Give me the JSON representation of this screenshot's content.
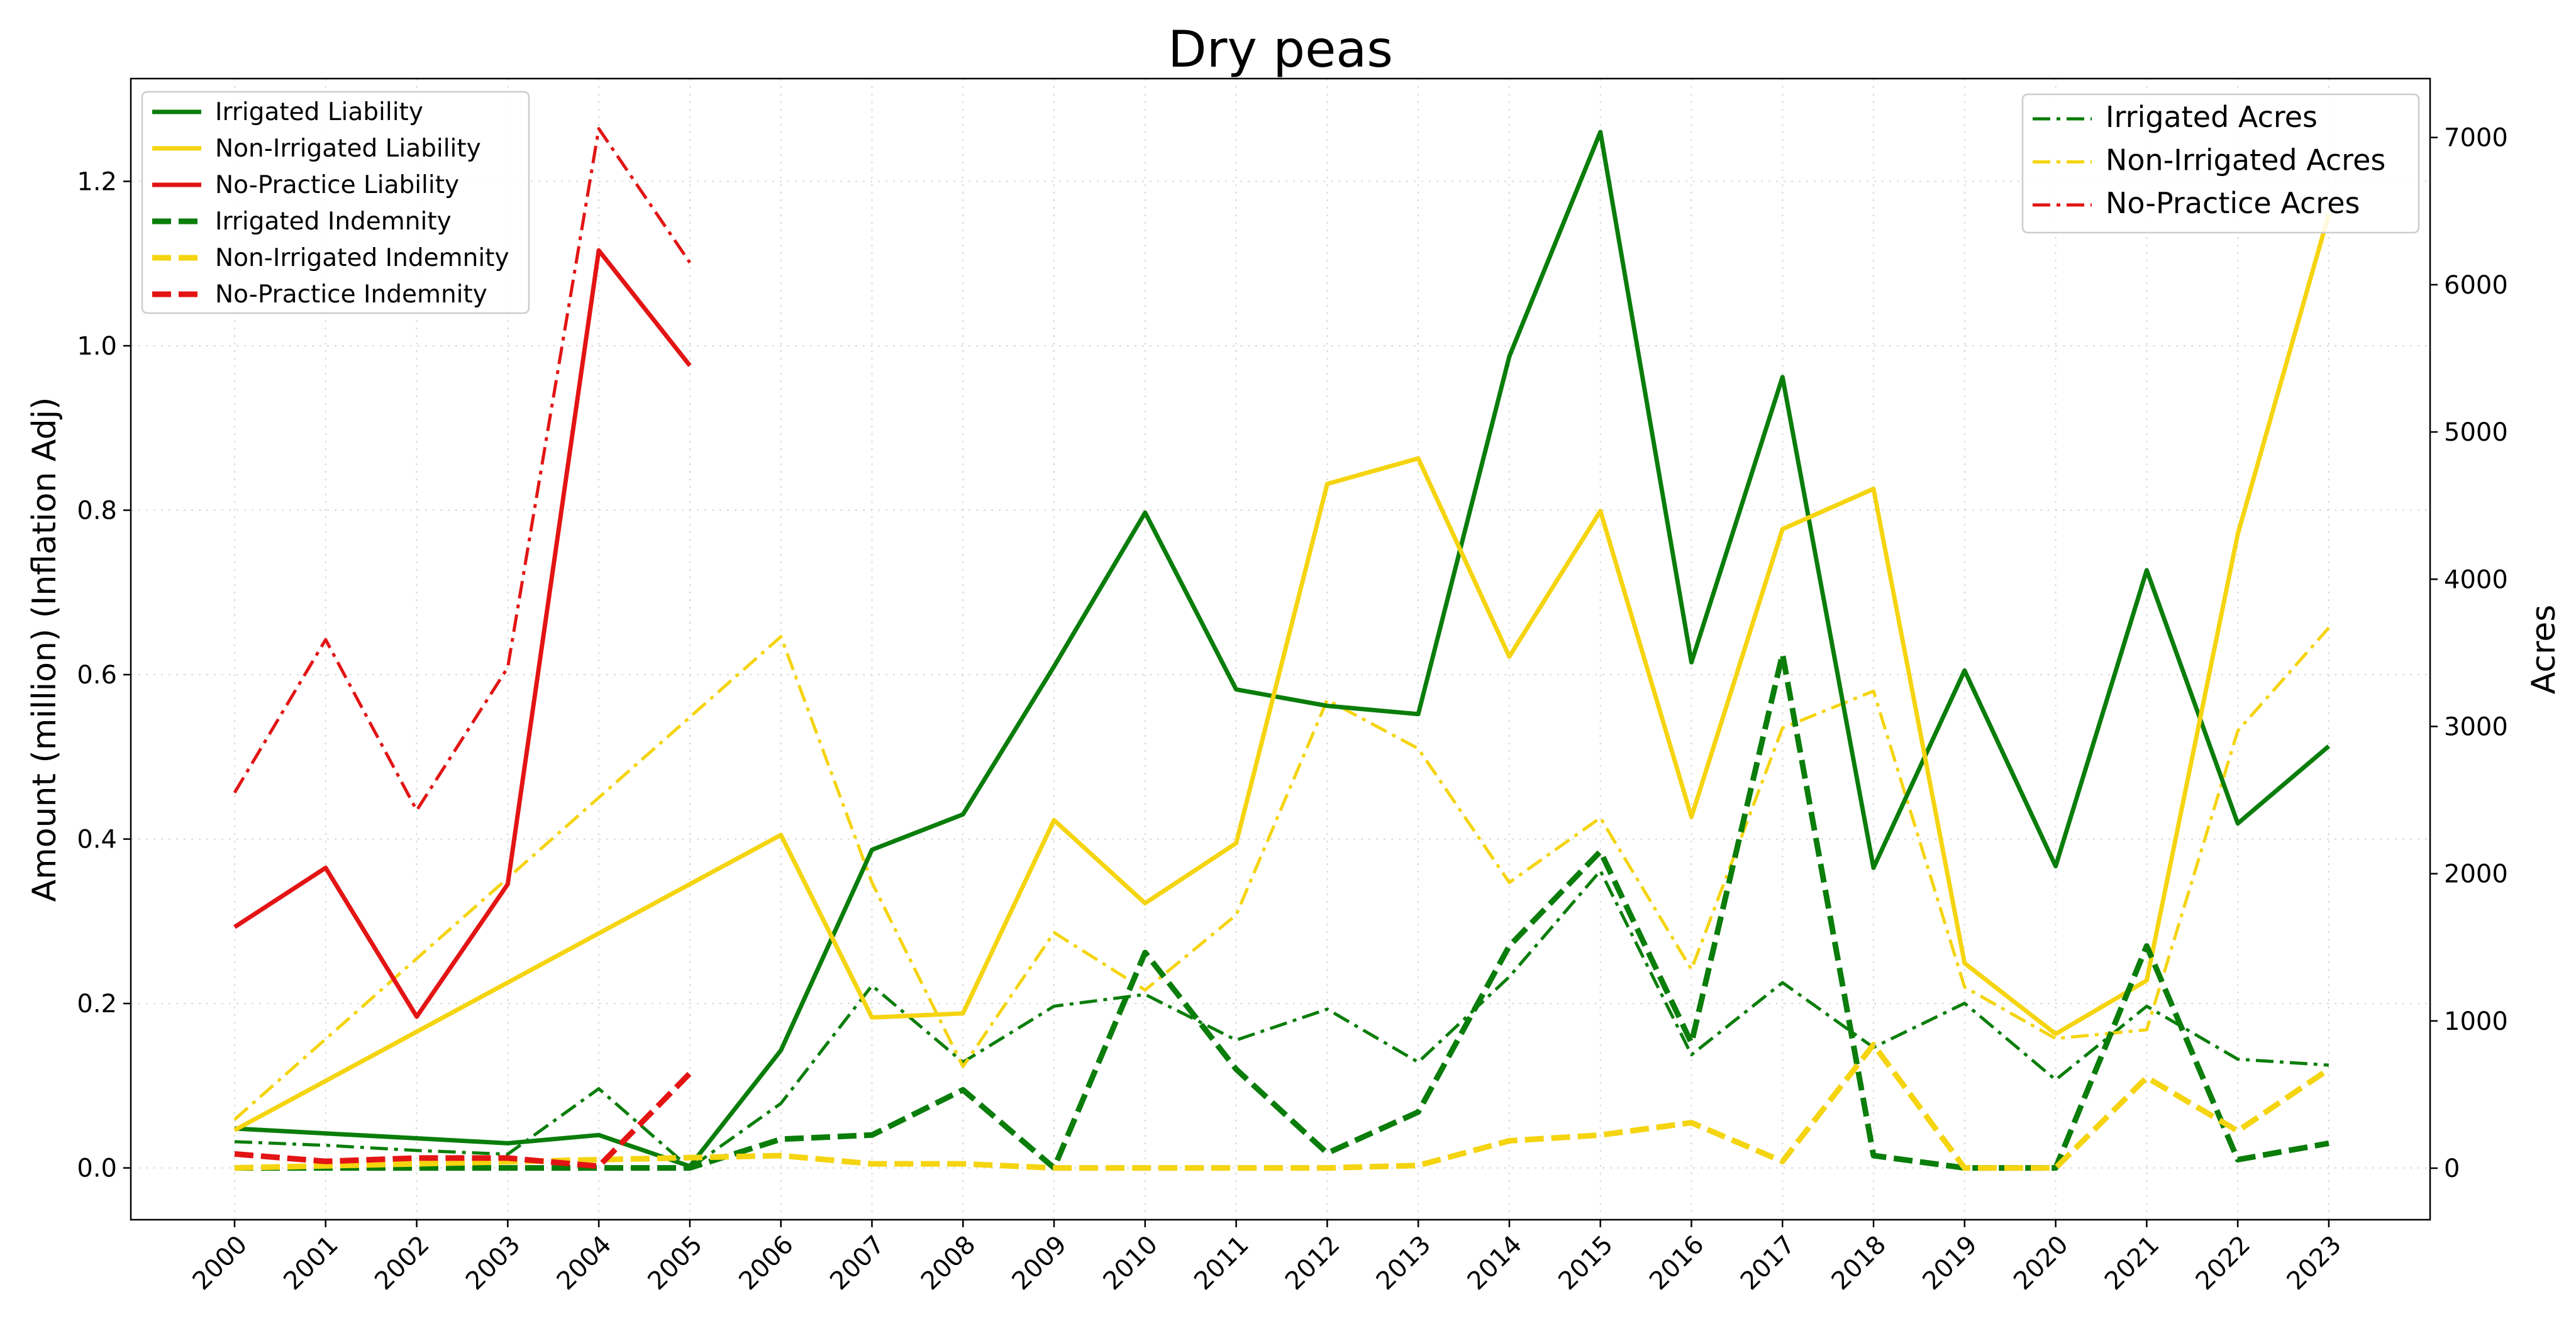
{
  "chart_data": {
    "type": "line",
    "title": "Dry peas",
    "ylabel_left": "Amount (million) (Inflation Adj)",
    "ylabel_right": "Acres",
    "xlabel": "",
    "x": [
      "2000",
      "2001",
      "2002",
      "2003",
      "2004",
      "2005",
      "2006",
      "2007",
      "2008",
      "2009",
      "2010",
      "2011",
      "2012",
      "2013",
      "2014",
      "2015",
      "2016",
      "2017",
      "2018",
      "2019",
      "2020",
      "2021",
      "2022",
      "2023"
    ],
    "ylim_left": [
      -0.063,
      1.325
    ],
    "ylim_right": [
      -350,
      7400
    ],
    "yticks_left": [
      "0.0",
      "0.2",
      "0.4",
      "0.6",
      "0.8",
      "1.0",
      "1.2"
    ],
    "yticks_right": [
      "0",
      "1000",
      "2000",
      "3000",
      "4000",
      "5000",
      "6000",
      "7000"
    ],
    "grid": true,
    "legend_left_placement": "top-left",
    "legend_right_placement": "top-right",
    "colors": {
      "irrigated": "#0a7d0a",
      "non_irrigated": "#f5d410",
      "no_practice": "#e31414"
    },
    "series_left": [
      {
        "name": "Irrigated Liability",
        "color": "#0a7d0a",
        "style": "solid",
        "values": [
          0.048,
          0.042,
          0.036,
          0.03,
          0.04,
          0.002,
          0.143,
          0.387,
          0.43,
          0.61,
          0.797,
          0.582,
          0.562,
          0.552,
          0.987,
          1.26,
          0.615,
          0.962,
          0.365,
          0.605,
          0.367,
          0.727,
          0.419,
          0.513
        ]
      },
      {
        "name": "Non-Irrigated Liability",
        "color": "#f5d410",
        "style": "solid",
        "values": [
          0.046,
          null,
          null,
          null,
          null,
          null,
          0.405,
          0.183,
          0.188,
          0.423,
          0.322,
          0.395,
          0.832,
          0.863,
          0.622,
          0.799,
          0.427,
          0.777,
          0.826,
          0.249,
          0.163,
          0.228,
          0.771,
          1.16
        ]
      },
      {
        "name": "No-Practice Liability",
        "color": "#e31414",
        "style": "solid",
        "values": [
          0.293,
          0.365,
          0.184,
          0.345,
          1.116,
          0.976,
          null,
          null,
          null,
          null,
          null,
          null,
          null,
          null,
          null,
          null,
          null,
          null,
          null,
          null,
          null,
          null,
          null,
          null
        ]
      },
      {
        "name": "Irrigated Indemnity",
        "color": "#0a7d0a",
        "style": "dashed",
        "values": [
          0.0,
          0.0,
          0.0,
          0.0,
          0.0,
          0.0,
          0.035,
          0.04,
          0.095,
          0.0,
          0.262,
          0.12,
          0.018,
          0.068,
          0.27,
          0.385,
          0.152,
          0.625,
          0.015,
          0.0,
          0.0,
          0.27,
          0.01,
          0.03
        ]
      },
      {
        "name": "Non-Irrigated Indemnity",
        "color": "#f5d410",
        "style": "dashed",
        "values": [
          0.0,
          null,
          null,
          null,
          null,
          null,
          0.015,
          0.005,
          0.005,
          0.0,
          0.0,
          0.0,
          0.0,
          0.003,
          0.033,
          0.04,
          0.055,
          0.008,
          0.15,
          0.0,
          0.0,
          0.11,
          0.045,
          0.12
        ]
      },
      {
        "name": "No-Practice Indemnity",
        "color": "#e31414",
        "style": "dashed",
        "values": [
          0.017,
          0.008,
          0.012,
          0.012,
          0.002,
          0.115,
          null,
          null,
          null,
          null,
          null,
          null,
          null,
          null,
          null,
          null,
          null,
          null,
          null,
          null,
          null,
          null,
          null,
          null
        ]
      }
    ],
    "series_right": [
      {
        "name": "Irrigated Acres",
        "color": "#0a7d0a",
        "style": "dashdot",
        "values": [
          180,
          155,
          120,
          95,
          540,
          0,
          440,
          1240,
          720,
          1100,
          1180,
          870,
          1080,
          720,
          1300,
          2020,
          770,
          1260,
          820,
          1120,
          600,
          1100,
          740,
          700
        ]
      },
      {
        "name": "Non-Irrigated Acres",
        "color": "#f5d410",
        "style": "dashdot",
        "values": [
          330,
          null,
          null,
          null,
          null,
          null,
          3610,
          1940,
          690,
          1600,
          1210,
          1720,
          3180,
          2850,
          1940,
          2380,
          1350,
          2990,
          3240,
          1230,
          880,
          940,
          2970,
          3670
        ]
      },
      {
        "name": "No-Practice Acres",
        "color": "#e31414",
        "style": "dashdot",
        "values": [
          2550,
          3590,
          2430,
          3400,
          7060,
          6150,
          null,
          null,
          null,
          null,
          null,
          null,
          null,
          null,
          null,
          null,
          null,
          null,
          null,
          null,
          null,
          null,
          null,
          null
        ]
      }
    ]
  }
}
